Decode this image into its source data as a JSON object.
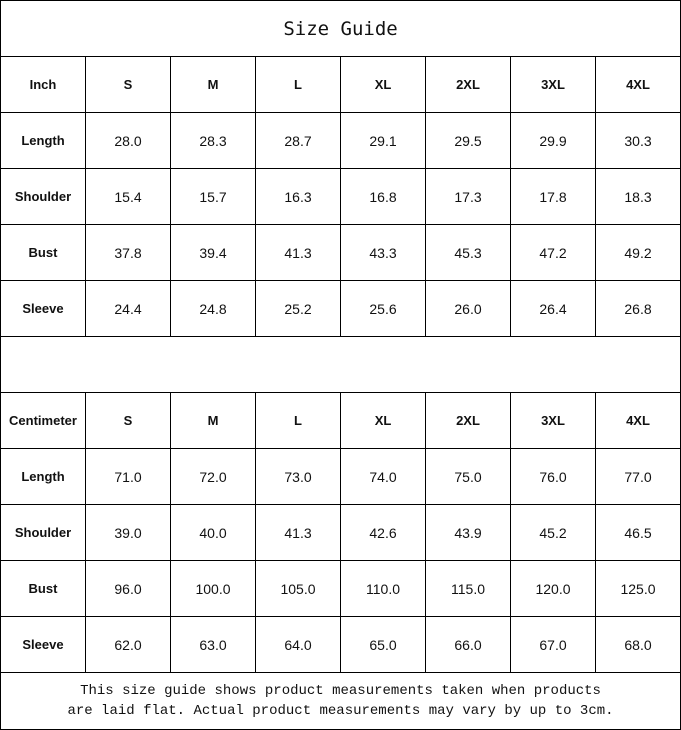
{
  "title": "Size Guide",
  "sizes": [
    "S",
    "M",
    "L",
    "XL",
    "2XL",
    "3XL",
    "4XL"
  ],
  "tables": [
    {
      "unit": "Inch",
      "rows": [
        {
          "label": "Length",
          "values": [
            "28.0",
            "28.3",
            "28.7",
            "29.1",
            "29.5",
            "29.9",
            "30.3"
          ]
        },
        {
          "label": "Shoulder",
          "values": [
            "15.4",
            "15.7",
            "16.3",
            "16.8",
            "17.3",
            "17.8",
            "18.3"
          ]
        },
        {
          "label": "Bust",
          "values": [
            "37.8",
            "39.4",
            "41.3",
            "43.3",
            "45.3",
            "47.2",
            "49.2"
          ]
        },
        {
          "label": "Sleeve",
          "values": [
            "24.4",
            "24.8",
            "25.2",
            "25.6",
            "26.0",
            "26.4",
            "26.8"
          ]
        }
      ]
    },
    {
      "unit": "Centimeter",
      "rows": [
        {
          "label": "Length",
          "values": [
            "71.0",
            "72.0",
            "73.0",
            "74.0",
            "75.0",
            "76.0",
            "77.0"
          ]
        },
        {
          "label": "Shoulder",
          "values": [
            "39.0",
            "40.0",
            "41.3",
            "42.6",
            "43.9",
            "45.2",
            "46.5"
          ]
        },
        {
          "label": "Bust",
          "values": [
            "96.0",
            "100.0",
            "105.0",
            "110.0",
            "115.0",
            "120.0",
            "125.0"
          ]
        },
        {
          "label": "Sleeve",
          "values": [
            "62.0",
            "63.0",
            "64.0",
            "65.0",
            "66.0",
            "67.0",
            "68.0"
          ]
        }
      ]
    }
  ],
  "note_line1": "This size guide shows product measurements taken when products",
  "note_line2": "are laid flat. Actual product measurements may vary by up to 3cm."
}
